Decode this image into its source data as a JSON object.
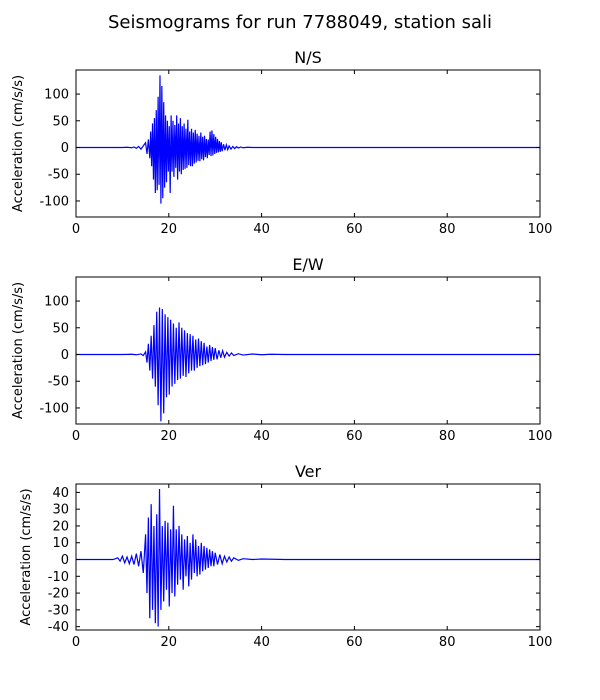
{
  "figure": {
    "suptitle": "Seismograms for run 7788049, station sali"
  },
  "chart_data": [
    {
      "type": "line",
      "title": "N/S",
      "xlabel": "",
      "ylabel": "Acceleration (cm/s/s)",
      "xlim": [
        0,
        100
      ],
      "ylim": [
        -130,
        145
      ],
      "xticks": [
        0,
        20,
        40,
        60,
        80,
        100
      ],
      "yticks": [
        -100,
        -50,
        0,
        50,
        100
      ],
      "grid": false,
      "line_color": "#0000ff",
      "series": [
        {
          "x": [
            0,
            10,
            11,
            12,
            12.5,
            13,
            13.5,
            14,
            14.5,
            15,
            15.3,
            15.6,
            15.9,
            16.1,
            16.3,
            16.5,
            16.7,
            16.9,
            17.1,
            17.3,
            17.5,
            17.7,
            17.9,
            18.1,
            18.3,
            18.5,
            18.7,
            18.9,
            19.1,
            19.3,
            19.5,
            19.7,
            19.9,
            20.1,
            20.3,
            20.5,
            20.7,
            20.9,
            21.1,
            21.3,
            21.5,
            21.7,
            21.9,
            22.1,
            22.3,
            22.5,
            22.7,
            22.9,
            23.1,
            23.3,
            23.5,
            23.7,
            23.9,
            24.1,
            24.3,
            24.5,
            24.7,
            24.9,
            25.1,
            25.3,
            25.5,
            25.7,
            25.9,
            26.1,
            26.3,
            26.5,
            26.7,
            26.9,
            27.1,
            27.3,
            27.5,
            27.7,
            27.9,
            28.1,
            28.3,
            28.5,
            28.7,
            28.9,
            29.1,
            29.3,
            29.5,
            29.7,
            29.9,
            30.1,
            30.3,
            30.5,
            30.7,
            30.9,
            31.1,
            31.3,
            31.5,
            31.8,
            32.1,
            32.4,
            32.7,
            33,
            33.4,
            33.8,
            34.2,
            34.6,
            35,
            35.5,
            36,
            37,
            38,
            40,
            45,
            100
          ],
          "y": [
            0,
            0,
            0.5,
            -0.5,
            1,
            -1.5,
            2,
            -3,
            3,
            9,
            -12,
            15,
            -20,
            30,
            -35,
            45,
            -60,
            55,
            -85,
            70,
            -80,
            95,
            -70,
            135,
            -105,
            115,
            -95,
            85,
            -75,
            60,
            -65,
            50,
            -45,
            40,
            -85,
            60,
            -45,
            50,
            -55,
            42,
            -38,
            60,
            -60,
            45,
            -45,
            55,
            -50,
            40,
            -42,
            45,
            -40,
            35,
            -38,
            52,
            -33,
            30,
            -35,
            35,
            -35,
            28,
            -30,
            33,
            -28,
            26,
            -25,
            22,
            -26,
            28,
            -22,
            20,
            -24,
            22,
            -18,
            16,
            -20,
            15,
            -14,
            30,
            -16,
            32,
            -15,
            25,
            -12,
            20,
            -10,
            16,
            -9,
            12,
            -8,
            10,
            -7,
            6,
            -5,
            5,
            -4,
            3,
            -3,
            2,
            -2,
            1.5,
            -1,
            1,
            -0.5,
            0.5,
            0,
            0,
            0,
            0
          ]
        }
      ]
    },
    {
      "type": "line",
      "title": "E/W",
      "xlabel": "",
      "ylabel": "Acceleration (cm/s/s)",
      "xlim": [
        0,
        100
      ],
      "ylim": [
        -130,
        145
      ],
      "xticks": [
        0,
        20,
        40,
        60,
        80,
        100
      ],
      "yticks": [
        -100,
        -50,
        0,
        50,
        100
      ],
      "grid": false,
      "line_color": "#0000ff",
      "series": [
        {
          "x": [
            0,
            10,
            12,
            13,
            14,
            14.5,
            15,
            15.3,
            15.6,
            15.9,
            16.2,
            16.5,
            16.8,
            17.1,
            17.4,
            17.7,
            18,
            18.3,
            18.6,
            18.9,
            19.2,
            19.5,
            19.8,
            20.1,
            20.4,
            20.7,
            21,
            21.3,
            21.6,
            21.9,
            22.2,
            22.5,
            22.8,
            23.1,
            23.4,
            23.7,
            24,
            24.3,
            24.6,
            24.9,
            25.2,
            25.5,
            25.8,
            26.1,
            26.4,
            26.7,
            27,
            27.3,
            27.6,
            27.9,
            28.2,
            28.5,
            28.8,
            29.1,
            29.4,
            29.7,
            30,
            30.4,
            30.8,
            31.2,
            31.6,
            32,
            32.5,
            33,
            33.5,
            34,
            35,
            36,
            38,
            40,
            42,
            45,
            100
          ],
          "y": [
            0,
            0,
            0.5,
            -0.5,
            1,
            -2,
            5,
            -15,
            20,
            -30,
            35,
            -45,
            55,
            -60,
            80,
            -95,
            88,
            -125,
            85,
            -110,
            75,
            -80,
            70,
            -75,
            65,
            -60,
            58,
            -55,
            50,
            -48,
            60,
            -45,
            50,
            -40,
            45,
            -42,
            40,
            -35,
            38,
            -30,
            35,
            -30,
            28,
            -25,
            30,
            -22,
            25,
            -20,
            22,
            -18,
            15,
            -15,
            18,
            -12,
            14,
            -10,
            12,
            -9,
            8,
            -6,
            7,
            -5,
            4,
            -3,
            3,
            -2,
            1.5,
            -1,
            1,
            -0.5,
            0.5,
            0,
            0
          ]
        }
      ]
    },
    {
      "type": "line",
      "title": "Ver",
      "xlabel": "",
      "ylabel": "Acceleration (cm/s/s)",
      "xlim": [
        0,
        100
      ],
      "ylim": [
        -42,
        45
      ],
      "xticks": [
        0,
        20,
        40,
        60,
        80,
        100
      ],
      "yticks": [
        -40,
        -30,
        -20,
        -10,
        0,
        10,
        20,
        30,
        40
      ],
      "grid": false,
      "line_color": "#0000ff",
      "series": [
        {
          "x": [
            0,
            8,
            9,
            9.5,
            10,
            10.5,
            11,
            11.5,
            12,
            12.5,
            13,
            13.5,
            14,
            14.5,
            15,
            15.3,
            15.6,
            15.9,
            16.2,
            16.5,
            16.8,
            17.1,
            17.4,
            17.7,
            18,
            18.3,
            18.6,
            18.9,
            19.2,
            19.5,
            19.8,
            20.1,
            20.4,
            20.7,
            21,
            21.3,
            21.6,
            21.9,
            22.2,
            22.5,
            22.8,
            23.1,
            23.4,
            23.7,
            24,
            24.3,
            24.6,
            24.9,
            25.2,
            25.5,
            25.8,
            26.1,
            26.4,
            26.7,
            27,
            27.3,
            27.6,
            27.9,
            28.2,
            28.5,
            28.8,
            29.1,
            29.4,
            29.7,
            30,
            30.5,
            31,
            31.5,
            32,
            32.5,
            33,
            33.5,
            34,
            35,
            36,
            38,
            40,
            45,
            100
          ],
          "y": [
            0,
            0,
            1,
            -1,
            2,
            -2,
            1.5,
            -2.5,
            2,
            -3,
            3.5,
            -4,
            5,
            -8,
            15,
            -20,
            25,
            -35,
            33,
            -30,
            20,
            -38,
            27,
            -40,
            42,
            -30,
            20,
            -25,
            23,
            -18,
            22,
            -28,
            18,
            -20,
            32,
            -22,
            18,
            -15,
            20,
            -12,
            15,
            -18,
            12,
            -10,
            14,
            -16,
            10,
            -12,
            15,
            -8,
            12,
            -10,
            8,
            -9,
            10,
            -7,
            8,
            -6,
            7,
            -5,
            6,
            -4,
            5,
            -4,
            4,
            -3,
            3,
            -2.5,
            2,
            -1.5,
            1.5,
            -1,
            1,
            -0.5,
            0.5,
            0,
            0.3,
            0,
            0
          ]
        }
      ]
    }
  ]
}
